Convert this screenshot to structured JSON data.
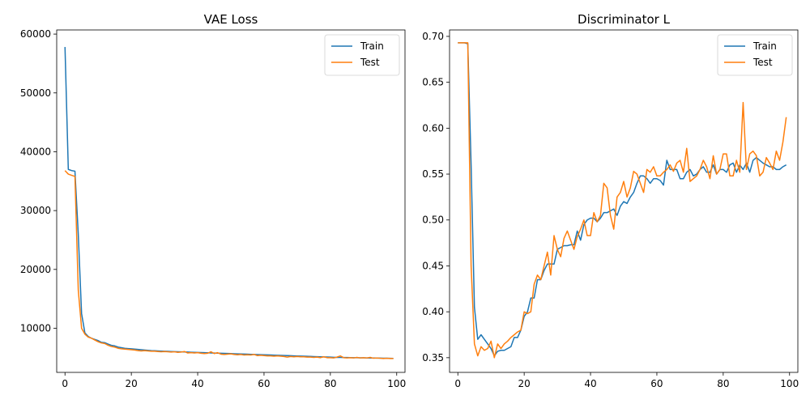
{
  "chart_data": [
    {
      "type": "line",
      "title": "VAE Loss",
      "xlim": [
        -2.5,
        102.5
      ],
      "ylim": [
        2500,
        60700
      ],
      "xticks": [
        0,
        20,
        40,
        60,
        80,
        100
      ],
      "yticks": [
        10000,
        20000,
        30000,
        40000,
        50000,
        60000
      ],
      "legend_position": "upper right",
      "series": [
        {
          "name": "Train",
          "color": "#1f77b4",
          "values": [
            57800,
            37000,
            36800,
            36700,
            26000,
            12500,
            9200,
            8600,
            8300,
            8100,
            7900,
            7600,
            7550,
            7300,
            7100,
            7000,
            6800,
            6700,
            6600,
            6550,
            6500,
            6450,
            6400,
            6350,
            6300,
            6250,
            6200,
            6180,
            6150,
            6120,
            6100,
            6080,
            6050,
            6030,
            6010,
            5990,
            5970,
            5950,
            5930,
            5910,
            5890,
            5870,
            5850,
            5830,
            5810,
            5790,
            5770,
            5750,
            5730,
            5710,
            5690,
            5670,
            5650,
            5630,
            5610,
            5590,
            5570,
            5550,
            5530,
            5510,
            5490,
            5470,
            5450,
            5430,
            5410,
            5390,
            5370,
            5350,
            5330,
            5310,
            5290,
            5270,
            5250,
            5230,
            5210,
            5190,
            5170,
            5150,
            5130,
            5110,
            5090,
            5070,
            5050,
            5040,
            5030,
            5020,
            5010,
            5000,
            4990,
            4980,
            4970,
            4960,
            4950,
            4940,
            4930,
            4920,
            4910,
            4900,
            4890,
            4880
          ]
        },
        {
          "name": "Test",
          "color": "#ff7f0e",
          "values": [
            36800,
            36200,
            36000,
            35800,
            16500,
            10000,
            9000,
            8500,
            8300,
            8000,
            7700,
            7500,
            7400,
            7100,
            6900,
            6800,
            6600,
            6500,
            6450,
            6400,
            6350,
            6300,
            6200,
            6150,
            6200,
            6150,
            6100,
            6100,
            6050,
            6000,
            6050,
            6000,
            5950,
            6000,
            5900,
            5950,
            6050,
            5800,
            5850,
            5800,
            5850,
            5750,
            5700,
            5750,
            6000,
            5700,
            5850,
            5600,
            5550,
            5600,
            5650,
            5550,
            5500,
            5550,
            5450,
            5500,
            5450,
            5550,
            5350,
            5400,
            5350,
            5300,
            5300,
            5250,
            5300,
            5250,
            5200,
            5100,
            5200,
            5150,
            5200,
            5150,
            5150,
            5100,
            5100,
            5050,
            5100,
            5000,
            5150,
            5000,
            5000,
            4950,
            5100,
            5300,
            5000,
            4950,
            5000,
            4950,
            5050,
            4950,
            5000,
            4950,
            5050,
            4900,
            4950,
            4900,
            4850,
            4900,
            4850,
            4850
          ]
        }
      ]
    },
    {
      "type": "line",
      "title": "Discriminator L",
      "xlim": [
        -2.5,
        102.5
      ],
      "ylim": [
        0.334,
        0.707
      ],
      "xticks": [
        0,
        20,
        40,
        60,
        80,
        100
      ],
      "yticks": [
        0.35,
        0.4,
        0.45,
        0.5,
        0.55,
        0.6,
        0.65,
        0.7
      ],
      "legend_position": "upper right",
      "series": [
        {
          "name": "Train",
          "color": "#1f77b4",
          "values": [
            0.693,
            0.693,
            0.693,
            0.692,
            0.56,
            0.405,
            0.37,
            0.375,
            0.37,
            0.365,
            0.36,
            0.352,
            0.357,
            0.358,
            0.358,
            0.36,
            0.362,
            0.372,
            0.372,
            0.38,
            0.395,
            0.4,
            0.415,
            0.415,
            0.435,
            0.435,
            0.445,
            0.452,
            0.452,
            0.452,
            0.468,
            0.47,
            0.472,
            0.472,
            0.473,
            0.473,
            0.488,
            0.478,
            0.495,
            0.5,
            0.502,
            0.502,
            0.498,
            0.502,
            0.508,
            0.508,
            0.51,
            0.512,
            0.505,
            0.515,
            0.52,
            0.518,
            0.525,
            0.53,
            0.54,
            0.548,
            0.548,
            0.545,
            0.54,
            0.545,
            0.545,
            0.543,
            0.538,
            0.565,
            0.555,
            0.555,
            0.555,
            0.545,
            0.545,
            0.552,
            0.555,
            0.548,
            0.55,
            0.555,
            0.558,
            0.552,
            0.552,
            0.56,
            0.55,
            0.555,
            0.555,
            0.552,
            0.56,
            0.562,
            0.552,
            0.56,
            0.555,
            0.562,
            0.552,
            0.565,
            0.568,
            0.565,
            0.562,
            0.56,
            0.558,
            0.558,
            0.555,
            0.555,
            0.558,
            0.56
          ]
        },
        {
          "name": "Test",
          "color": "#ff7f0e",
          "values": [
            0.693,
            0.693,
            0.693,
            0.693,
            0.45,
            0.365,
            0.352,
            0.362,
            0.358,
            0.36,
            0.368,
            0.35,
            0.365,
            0.36,
            0.365,
            0.368,
            0.372,
            0.375,
            0.378,
            0.38,
            0.4,
            0.398,
            0.4,
            0.43,
            0.44,
            0.435,
            0.45,
            0.465,
            0.44,
            0.483,
            0.468,
            0.46,
            0.48,
            0.488,
            0.478,
            0.468,
            0.482,
            0.49,
            0.5,
            0.483,
            0.483,
            0.508,
            0.498,
            0.505,
            0.54,
            0.535,
            0.505,
            0.49,
            0.525,
            0.53,
            0.542,
            0.525,
            0.535,
            0.553,
            0.55,
            0.54,
            0.53,
            0.555,
            0.552,
            0.558,
            0.548,
            0.548,
            0.552,
            0.555,
            0.56,
            0.553,
            0.562,
            0.565,
            0.552,
            0.578,
            0.542,
            0.545,
            0.548,
            0.555,
            0.565,
            0.558,
            0.545,
            0.57,
            0.55,
            0.555,
            0.572,
            0.572,
            0.548,
            0.548,
            0.565,
            0.552,
            0.628,
            0.555,
            0.572,
            0.575,
            0.57,
            0.548,
            0.552,
            0.568,
            0.562,
            0.555,
            0.575,
            0.565,
            0.585,
            0.612
          ]
        }
      ]
    }
  ]
}
